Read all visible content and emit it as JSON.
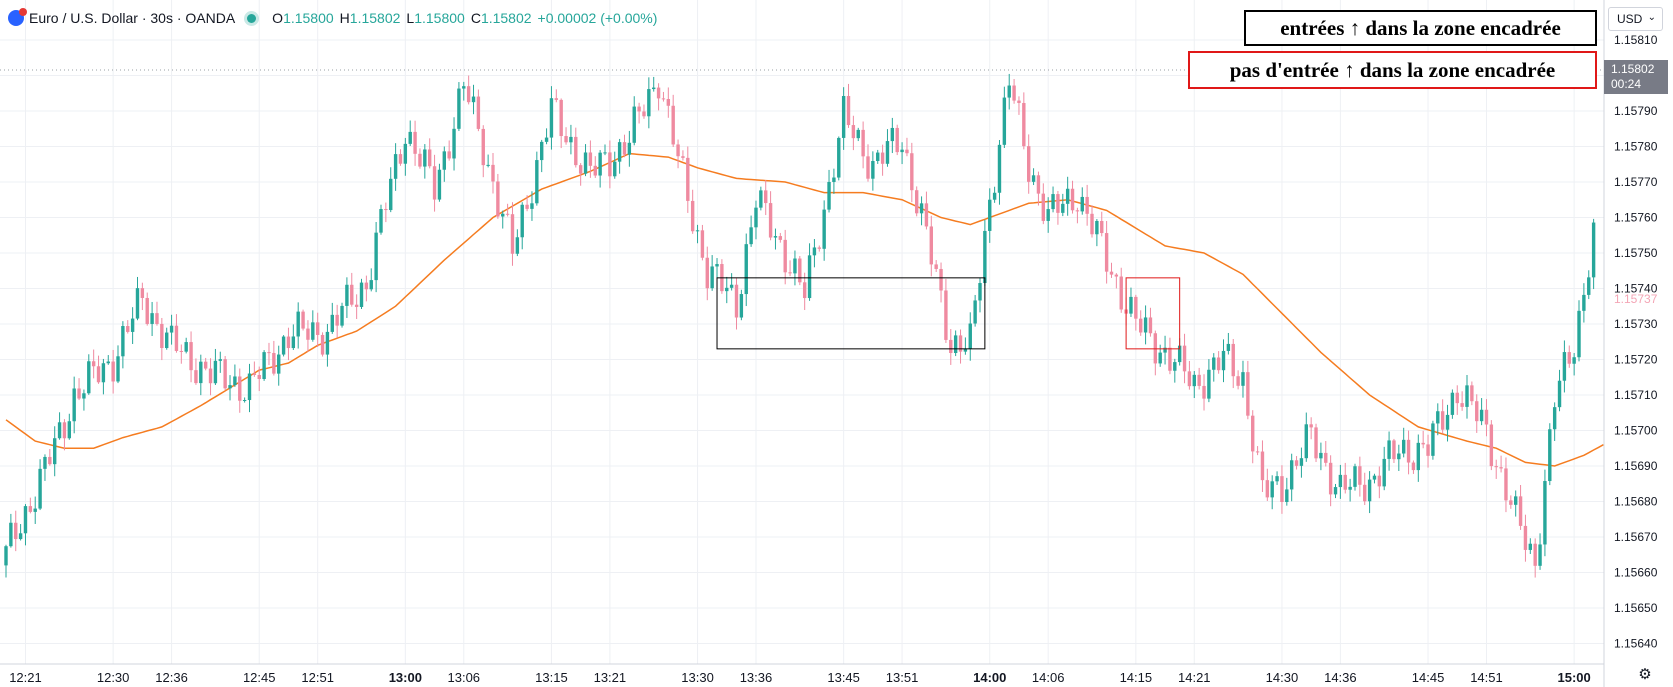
{
  "header": {
    "title": "Euro / U.S. Dollar · 30s · OANDA",
    "o_label": "O",
    "o": "1.15800",
    "h_label": "H",
    "h": "1.15802",
    "l_label": "L",
    "l": "1.15800",
    "c_label": "C",
    "c": "1.15802",
    "change": "+0.00002 (+0.00%)"
  },
  "annotations": {
    "black_note": "entrées ↑ dans la zone encadrée",
    "red_note": "pas d'entrée ↑ dans la zone encadrée"
  },
  "currency": "USD",
  "last_price": {
    "value": "1.15802",
    "countdown": "00:24"
  },
  "colors": {
    "up": "#26a69a",
    "down": "#ef8aa0",
    "ma": "#f57c20",
    "black_box": "#000000",
    "red_box": "#e01818",
    "grid": "#eef0f4"
  },
  "icons": {
    "settings": "gear-icon",
    "symbol": "euro-flag-icon"
  },
  "chart_data": {
    "type": "candlestick",
    "price_axis_labels": [
      "1.15810",
      "1.15800",
      "1.15790",
      "1.15780",
      "1.15770",
      "1.15760",
      "1.15750",
      "1.15740",
      "1.15730",
      "1.15720",
      "1.15710",
      "1.15700",
      "1.15690",
      "1.15680",
      "1.15670",
      "1.15660",
      "1.15650",
      "1.15640"
    ],
    "y_range": [
      1.15637,
      1.15818
    ],
    "time_axis_labels": [
      {
        "t": "12:21",
        "i": 4,
        "bold": false
      },
      {
        "t": "12:30",
        "i": 22,
        "bold": false
      },
      {
        "t": "12:36",
        "i": 34,
        "bold": false
      },
      {
        "t": "12:45",
        "i": 52,
        "bold": false
      },
      {
        "t": "12:51",
        "i": 64,
        "bold": false
      },
      {
        "t": "13:00",
        "i": 82,
        "bold": true
      },
      {
        "t": "13:06",
        "i": 94,
        "bold": false
      },
      {
        "t": "13:15",
        "i": 112,
        "bold": false
      },
      {
        "t": "13:21",
        "i": 124,
        "bold": false
      },
      {
        "t": "13:30",
        "i": 142,
        "bold": false
      },
      {
        "t": "13:36",
        "i": 154,
        "bold": false
      },
      {
        "t": "13:45",
        "i": 172,
        "bold": false
      },
      {
        "t": "13:51",
        "i": 184,
        "bold": false
      },
      {
        "t": "14:00",
        "i": 202,
        "bold": true
      },
      {
        "t": "14:06",
        "i": 214,
        "bold": false
      },
      {
        "t": "14:15",
        "i": 232,
        "bold": false
      },
      {
        "t": "14:21",
        "i": 244,
        "bold": false
      },
      {
        "t": "14:30",
        "i": 262,
        "bold": false
      },
      {
        "t": "14:36",
        "i": 274,
        "bold": false
      },
      {
        "t": "14:45",
        "i": 292,
        "bold": false
      },
      {
        "t": "14:51",
        "i": 304,
        "bold": false
      },
      {
        "t": "15:00",
        "i": 322,
        "bold": true
      }
    ],
    "close_anchors": [
      [
        0,
        1.15665
      ],
      [
        10,
        1.15695
      ],
      [
        14,
        1.1571
      ],
      [
        22,
        1.1572
      ],
      [
        28,
        1.15737
      ],
      [
        34,
        1.15724
      ],
      [
        42,
        1.15716
      ],
      [
        50,
        1.15712
      ],
      [
        58,
        1.15727
      ],
      [
        66,
        1.15728
      ],
      [
        74,
        1.15742
      ],
      [
        82,
        1.15785
      ],
      [
        88,
        1.15768
      ],
      [
        94,
        1.15797
      ],
      [
        98,
        1.1578
      ],
      [
        104,
        1.1575
      ],
      [
        112,
        1.1579
      ],
      [
        120,
        1.15772
      ],
      [
        128,
        1.15782
      ],
      [
        134,
        1.158
      ],
      [
        138,
        1.15776
      ],
      [
        144,
        1.15745
      ],
      [
        150,
        1.15736
      ],
      [
        154,
        1.15765
      ],
      [
        160,
        1.1575
      ],
      [
        164,
        1.15738
      ],
      [
        172,
        1.15788
      ],
      [
        178,
        1.15775
      ],
      [
        184,
        1.15782
      ],
      [
        188,
        1.1576
      ],
      [
        194,
        1.15725
      ],
      [
        198,
        1.15724
      ],
      [
        202,
        1.15765
      ],
      [
        206,
        1.15798
      ],
      [
        210,
        1.15775
      ],
      [
        214,
        1.1576
      ],
      [
        220,
        1.15767
      ],
      [
        226,
        1.15748
      ],
      [
        232,
        1.1573
      ],
      [
        238,
        1.15722
      ],
      [
        244,
        1.15713
      ],
      [
        250,
        1.1572
      ],
      [
        254,
        1.15715
      ],
      [
        258,
        1.15682
      ],
      [
        262,
        1.15685
      ],
      [
        268,
        1.15698
      ],
      [
        274,
        1.15683
      ],
      [
        280,
        1.15686
      ],
      [
        286,
        1.15694
      ],
      [
        292,
        1.15695
      ],
      [
        298,
        1.15712
      ],
      [
        304,
        1.157
      ],
      [
        310,
        1.15675
      ],
      [
        314,
        1.15663
      ],
      [
        318,
        1.15708
      ],
      [
        322,
        1.15725
      ],
      [
        326,
        1.15755
      ]
    ],
    "moving_average": [
      [
        0,
        1.15703
      ],
      [
        6,
        1.15697
      ],
      [
        12,
        1.15695
      ],
      [
        18,
        1.15695
      ],
      [
        24,
        1.15698
      ],
      [
        32,
        1.15701
      ],
      [
        40,
        1.15707
      ],
      [
        46,
        1.15712
      ],
      [
        52,
        1.15717
      ],
      [
        58,
        1.15719
      ],
      [
        64,
        1.15724
      ],
      [
        72,
        1.15728
      ],
      [
        80,
        1.15735
      ],
      [
        90,
        1.15748
      ],
      [
        100,
        1.1576
      ],
      [
        110,
        1.15768
      ],
      [
        120,
        1.15773
      ],
      [
        128,
        1.15778
      ],
      [
        136,
        1.15777
      ],
      [
        142,
        1.15774
      ],
      [
        150,
        1.15771
      ],
      [
        160,
        1.1577
      ],
      [
        168,
        1.15767
      ],
      [
        176,
        1.15767
      ],
      [
        184,
        1.15765
      ],
      [
        192,
        1.1576
      ],
      [
        198,
        1.15758
      ],
      [
        204,
        1.15761
      ],
      [
        210,
        1.15764
      ],
      [
        218,
        1.15765
      ],
      [
        226,
        1.15762
      ],
      [
        232,
        1.15757
      ],
      [
        238,
        1.15752
      ],
      [
        246,
        1.1575
      ],
      [
        254,
        1.15744
      ],
      [
        262,
        1.15733
      ],
      [
        270,
        1.15722
      ],
      [
        280,
        1.1571
      ],
      [
        290,
        1.15701
      ],
      [
        300,
        1.15697
      ],
      [
        306,
        1.15695
      ],
      [
        312,
        1.15691
      ],
      [
        318,
        1.1569
      ],
      [
        324,
        1.15693
      ],
      [
        328,
        1.15696
      ]
    ],
    "boxes": [
      {
        "color": "black",
        "from_i": 146,
        "to_i": 201,
        "top": 1.15743,
        "bottom": 1.15723
      },
      {
        "color": "red",
        "from_i": 230,
        "to_i": 241,
        "top": 1.15743,
        "bottom": 1.15723
      }
    ]
  }
}
